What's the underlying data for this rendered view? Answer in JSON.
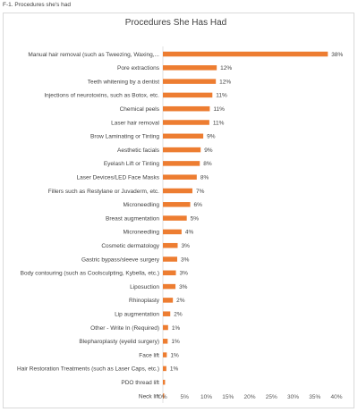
{
  "figure_caption": "F-1. Procedures she's had",
  "chart_data": {
    "type": "bar",
    "orientation": "horizontal",
    "title": "Procedures She Has Had",
    "xlabel": "",
    "ylabel": "",
    "xlim": [
      0,
      40
    ],
    "xticks": [
      "0%",
      "5%",
      "10%",
      "15%",
      "20%",
      "25%",
      "30%",
      "35%",
      "40%"
    ],
    "bar_color": "#ed7d31",
    "grid": false,
    "legend": "none",
    "categories": [
      "Manual hair removal (such as Tweezing, Waxing,...",
      "Pore extractions",
      "Teeth whitening by a dentist",
      "Injections of neurotoxins, such as Botox, etc.",
      "Chemical peels",
      "Laser hair removal",
      "Brow Laminating or Tinting",
      "Aesthetic facials",
      "Eyelash Lift or Tinting",
      "Laser Devices/LED Face Masks",
      "Fillers such as Restylane or Juvaderm, etc.",
      "Microneedling",
      "Breast augmentation",
      "Microneedling",
      "Cosmetic dermatology",
      "Gastric bypass/sleeve surgery",
      "Body contouring (such as Coolsculpting, Kybella, etc.)",
      "Liposuction",
      "Rhinoplasty",
      "Lip augmentation",
      "Other - Write In (Required)",
      "Blepharoplasty (eyelid surgery)",
      "Face lift",
      "Hair Restoration Treatments (such as Laser Caps, etc.)",
      "PDO thread lift",
      "Neck lift"
    ],
    "values": [
      38,
      12.4,
      12.2,
      11.4,
      10.8,
      10.7,
      9.3,
      8.7,
      8.5,
      7.8,
      6.8,
      6.3,
      5.5,
      4.3,
      3.4,
      3.3,
      3.0,
      2.9,
      2.3,
      1.7,
      1.2,
      1.1,
      0.9,
      0.8,
      0.5,
      0.3
    ],
    "data_labels": [
      "38%",
      "12%",
      "12%",
      "11%",
      "11%",
      "11%",
      "9%",
      "9%",
      "8%",
      "8%",
      "7%",
      "6%",
      "5%",
      "4%",
      "3%",
      "3%",
      "3%",
      "3%",
      "2%",
      "2%",
      "1%",
      "1%",
      "1%",
      "1%",
      "",
      ""
    ]
  }
}
